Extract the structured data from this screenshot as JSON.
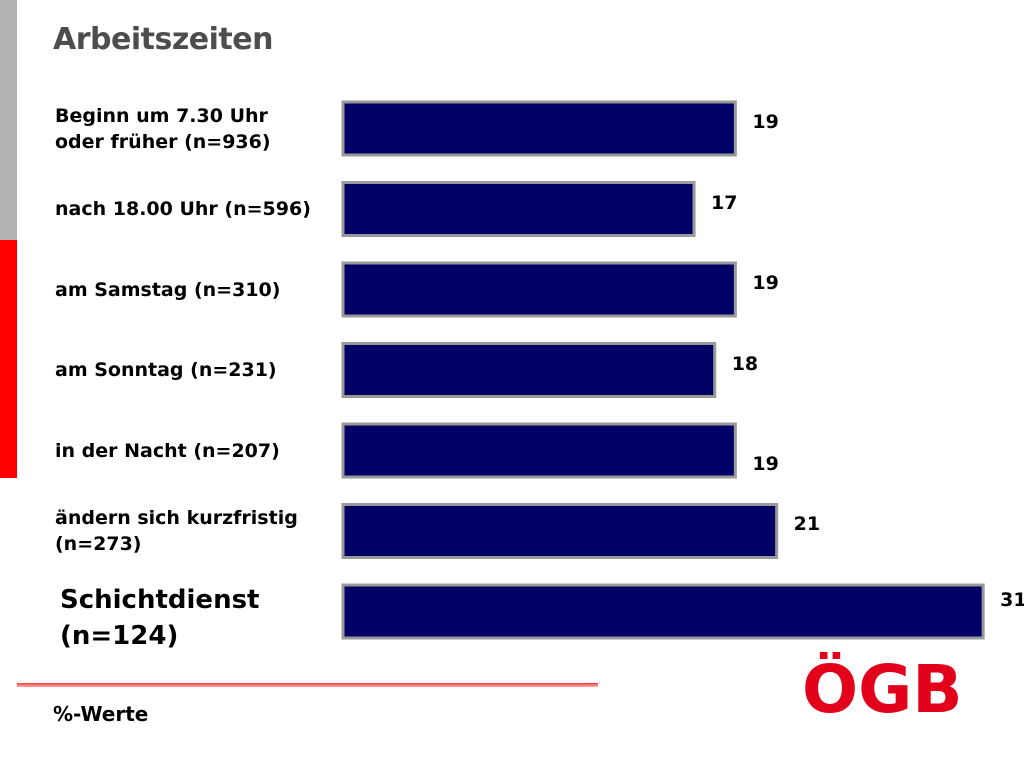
{
  "title": "Arbeitszeiten",
  "footnote": "%-Werte",
  "logo_text": "ÖGB",
  "colors": {
    "bar_fill": "#000066",
    "bar_border": "#999999",
    "accent_red": "#ff0000",
    "accent_gray": "#b3b3b3",
    "title": "#4d4d4d",
    "logo": "#e3001b"
  },
  "chart_data": {
    "type": "bar",
    "orientation": "horizontal",
    "categories": [
      "Beginn um 7.30 Uhr\noder früher (n=936)",
      "nach 18.00 Uhr (n=596)",
      "am Samstag (n=310)",
      "am Sonntag (n=231)",
      "in der Nacht (n=207)",
      "ändern sich kurzfristig\n(n=273)",
      "Schichtdienst\n(n=124)"
    ],
    "values": [
      19,
      17,
      19,
      18,
      19,
      21,
      31
    ],
    "data_labels": [
      "19",
      "17",
      "19",
      "18",
      "19",
      "21",
      "31"
    ],
    "title": "Arbeitszeiten",
    "xlabel": "%-Werte",
    "ylabel": "",
    "grid": false,
    "legend": "none"
  }
}
